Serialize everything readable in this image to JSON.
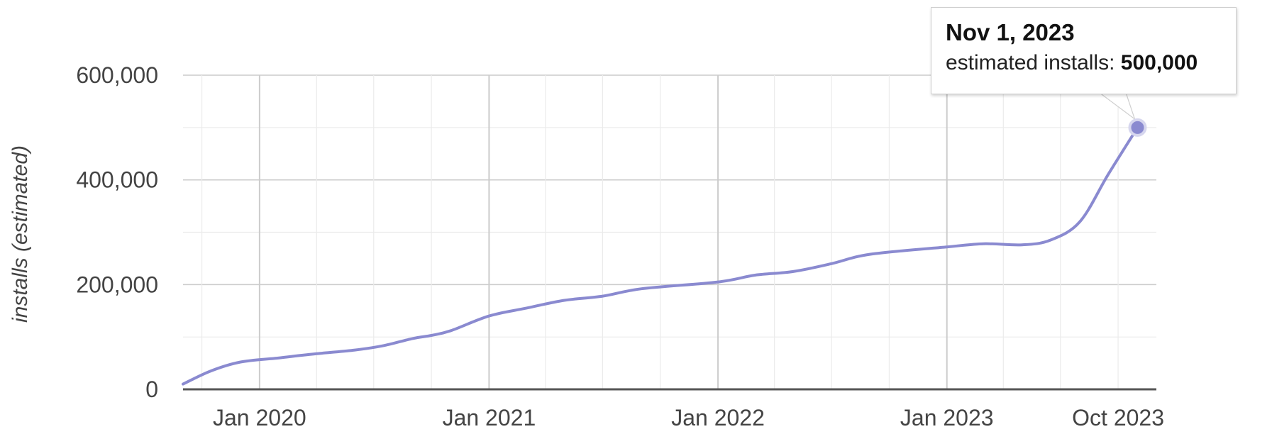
{
  "chart_data": {
    "type": "line",
    "ylabel": "installs (estimated)",
    "xlabel": "",
    "title": "",
    "ylim": [
      0,
      600000
    ],
    "yticks": [
      0,
      200000,
      400000,
      600000
    ],
    "ytick_labels": [
      "0",
      "200,000",
      "400,000",
      "600,000"
    ],
    "xticks": [
      {
        "date": "2020-01-01",
        "label": "Jan 2020"
      },
      {
        "date": "2021-01-01",
        "label": "Jan 2021"
      },
      {
        "date": "2022-01-01",
        "label": "Jan 2022"
      },
      {
        "date": "2023-01-01",
        "label": "Jan 2023"
      },
      {
        "date": "2023-10-01",
        "label": "Oct 2023"
      }
    ],
    "xlim": [
      "2019-09-01",
      "2023-12-01"
    ],
    "grid": true,
    "series": [
      {
        "color": "#8a8ad0",
        "points": [
          [
            "2019-09-01",
            10000
          ],
          [
            "2019-10-15",
            35000
          ],
          [
            "2019-12-01",
            52000
          ],
          [
            "2020-02-01",
            60000
          ],
          [
            "2020-04-01",
            68000
          ],
          [
            "2020-06-01",
            75000
          ],
          [
            "2020-07-15",
            83000
          ],
          [
            "2020-09-01",
            97000
          ],
          [
            "2020-10-01",
            103000
          ],
          [
            "2020-11-01",
            112000
          ],
          [
            "2021-01-01",
            140000
          ],
          [
            "2021-03-01",
            155000
          ],
          [
            "2021-05-01",
            170000
          ],
          [
            "2021-07-01",
            178000
          ],
          [
            "2021-09-01",
            192000
          ],
          [
            "2022-01-01",
            205000
          ],
          [
            "2022-03-01",
            218000
          ],
          [
            "2022-05-01",
            225000
          ],
          [
            "2022-07-01",
            240000
          ],
          [
            "2022-09-01",
            258000
          ],
          [
            "2023-01-01",
            272000
          ],
          [
            "2023-03-01",
            278000
          ],
          [
            "2023-05-01",
            276000
          ],
          [
            "2023-06-15",
            285000
          ],
          [
            "2023-08-01",
            320000
          ],
          [
            "2023-09-15",
            410000
          ],
          [
            "2023-11-01",
            500000
          ]
        ]
      }
    ],
    "highlight": {
      "date": "2023-11-01",
      "value": 500000
    }
  },
  "tooltip": {
    "date": "Nov 1, 2023",
    "label": "estimated installs:",
    "value": "500,000"
  },
  "colors": {
    "line": "#8a8ad0",
    "point": "#8a8ad0",
    "grid_major": "#cccccc",
    "grid_minor": "#ebebeb",
    "axis": "#555555"
  }
}
